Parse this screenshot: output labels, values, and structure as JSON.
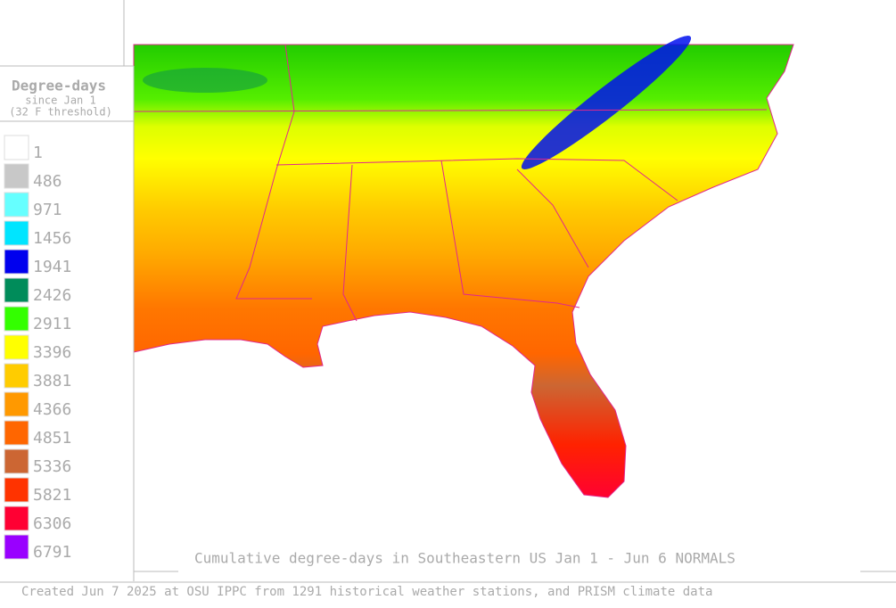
{
  "legend": {
    "title": "Degree-days",
    "subtitle": [
      "since Jan 1",
      "(32 F threshold)"
    ],
    "items": [
      {
        "value": 1,
        "color": "#ffffff"
      },
      {
        "value": 486,
        "color": "#c8c8c8"
      },
      {
        "value": 971,
        "color": "#66ffff"
      },
      {
        "value": 1456,
        "color": "#00e5ff"
      },
      {
        "value": 1941,
        "color": "#0000ee"
      },
      {
        "value": 2426,
        "color": "#008c5a"
      },
      {
        "value": 2911,
        "color": "#33ff00"
      },
      {
        "value": 3396,
        "color": "#ffff00"
      },
      {
        "value": 3881,
        "color": "#ffcc00"
      },
      {
        "value": 4366,
        "color": "#ff9900"
      },
      {
        "value": 4851,
        "color": "#ff6600"
      },
      {
        "value": 5336,
        "color": "#cc6633"
      },
      {
        "value": 5821,
        "color": "#ff3300"
      },
      {
        "value": 6306,
        "color": "#ff0033"
      },
      {
        "value": 6791,
        "color": "#9900ff"
      }
    ]
  },
  "caption": "Cumulative degree-days in Southeastern US Jan 1 - Jun 6 NORMALS",
  "footer": "Created Jun 7 2025 at OSU IPPC from 1291 historical weather stations, and PRISM climate data"
}
